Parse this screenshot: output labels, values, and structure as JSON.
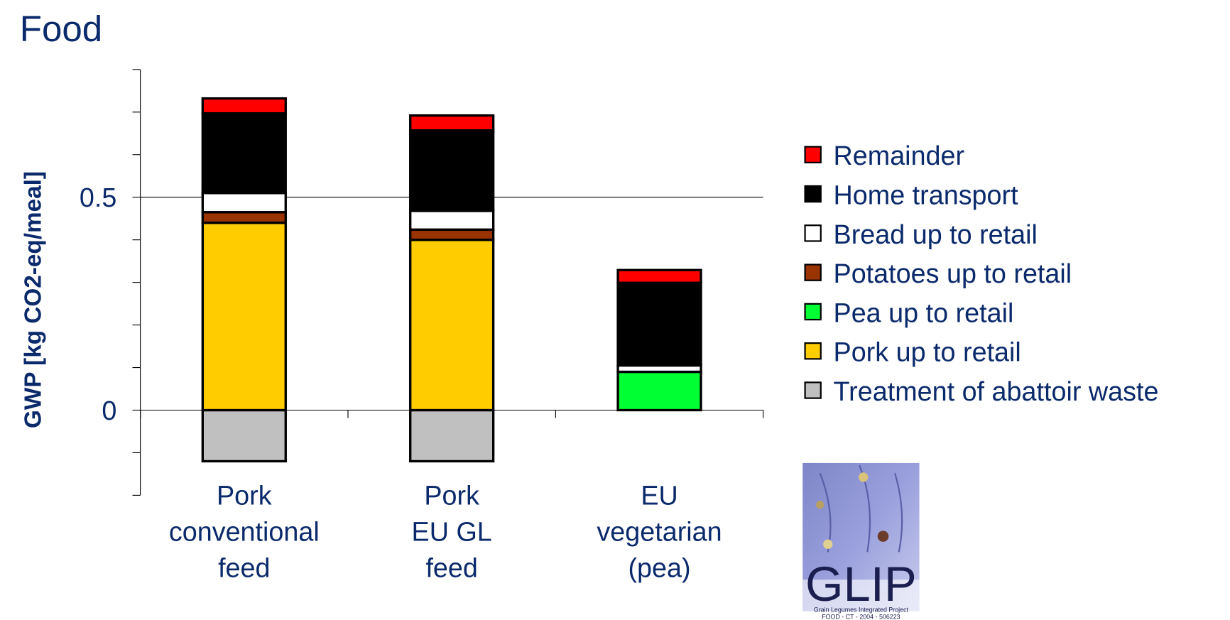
{
  "chart_data": {
    "type": "stacked_bar",
    "title": "Food",
    "y_label": "GWP [kg CO2-eq/meal]",
    "categories": [
      "Pork\nconventional\nfeed",
      "Pork\nEU GL\nfeed",
      "EU\nvegetarian\n(pea)"
    ],
    "series": [
      {
        "name": "Remainder",
        "color": "#ff0000",
        "values": [
          0.035,
          0.035,
          0.03
        ]
      },
      {
        "name": "Home transport",
        "color": "#000000",
        "values": [
          0.187,
          0.189,
          0.194
        ]
      },
      {
        "name": "Bread up to retail",
        "color": "#ffffff",
        "values": [
          0.045,
          0.044,
          0.015
        ]
      },
      {
        "name": "Potatoes up to retail",
        "color": "#993300",
        "values": [
          0.025,
          0.024,
          0
        ]
      },
      {
        "name": "Pea up to retail",
        "color": "#00ff33",
        "values": [
          0,
          0,
          0.09
        ]
      },
      {
        "name": "Pork up to retail",
        "color": "#ffcc00",
        "values": [
          0.44,
          0.4,
          0
        ]
      },
      {
        "name": "Treatment of abattoir waste",
        "color": "#c0c0c0",
        "values": [
          -0.12,
          -0.12,
          0
        ]
      }
    ],
    "ylim": [
      -0.2,
      0.8
    ],
    "yticks": [
      0,
      0.5
    ],
    "minor_yticks": [
      -0.2,
      -0.1,
      0,
      0.1,
      0.2,
      0.3,
      0.4,
      0.5,
      0.6,
      0.7,
      0.8
    ],
    "grid": true,
    "legend": "right",
    "logo": {
      "text": "GLIP",
      "line1": "Grain Legumes Integrated Project",
      "line2": "FOOD - CT - 2004 - 506223"
    }
  }
}
